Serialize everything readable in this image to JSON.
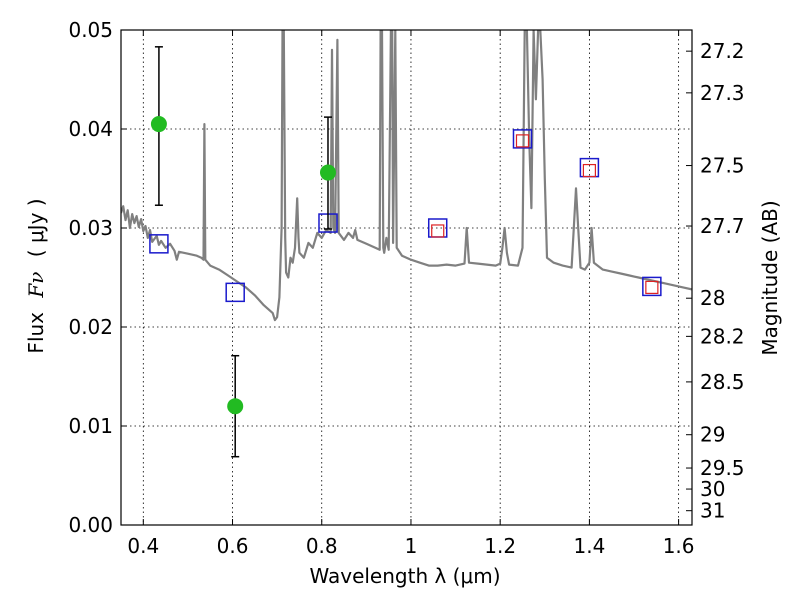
{
  "chart_data": {
    "type": "scatter",
    "xlabel": "Wavelength  λ (μm)",
    "ylabel_text": "Flux",
    "ylabel_symbol": "Fν",
    "ylabel_unit": "( μJy )",
    "y2label": "Magnitude (AB)",
    "xlim": [
      0.35,
      1.63
    ],
    "ylim": [
      0.0,
      0.05
    ],
    "grid": true,
    "x_ticks": [
      0.4,
      0.6,
      0.8,
      1.0,
      1.2,
      1.4,
      1.6
    ],
    "x_tick_labels": [
      "0.4",
      "0.6",
      "0.8",
      "1",
      "1.2",
      "1.4",
      "1.6"
    ],
    "y_ticks": [
      0.0,
      0.01,
      0.02,
      0.03,
      0.04,
      0.05
    ],
    "y_tick_labels": [
      "0.00",
      "0.01",
      "0.02",
      "0.03",
      "0.04",
      "0.05"
    ],
    "y2_ticks": [
      {
        "mag": 27.2,
        "label": "27.2"
      },
      {
        "mag": 27.3,
        "label": "27.3"
      },
      {
        "mag": 27.5,
        "label": "27.5"
      },
      {
        "mag": 27.7,
        "label": "27.7"
      },
      {
        "mag": 28.0,
        "label": "28"
      },
      {
        "mag": 28.2,
        "label": "28.2"
      },
      {
        "mag": 28.5,
        "label": "28.5"
      },
      {
        "mag": 29.0,
        "label": "29"
      },
      {
        "mag": 29.5,
        "label": "29.5"
      },
      {
        "mag": 30.0,
        "label": "30"
      },
      {
        "mag": 31.0,
        "label": "31"
      }
    ],
    "observed": {
      "color": "#22bb22",
      "points": [
        {
          "x": 0.435,
          "y": 0.0405,
          "err_low": 0.0323,
          "err_high": 0.0483
        },
        {
          "x": 0.606,
          "y": 0.012,
          "err_low": 0.0069,
          "err_high": 0.0171
        },
        {
          "x": 0.814,
          "y": 0.0356,
          "err_low": 0.0299,
          "err_high": 0.0412
        }
      ]
    },
    "model_blue": {
      "color": "#1a1acc",
      "points": [
        {
          "x": 0.435,
          "y": 0.0284
        },
        {
          "x": 0.606,
          "y": 0.0235
        },
        {
          "x": 0.814,
          "y": 0.0305
        },
        {
          "x": 1.06,
          "y": 0.03
        },
        {
          "x": 1.25,
          "y": 0.039
        },
        {
          "x": 1.4,
          "y": 0.0361
        },
        {
          "x": 1.54,
          "y": 0.0241
        }
      ]
    },
    "model_red": {
      "color": "#dd2222",
      "points": [
        {
          "x": 1.06,
          "y": 0.0297
        },
        {
          "x": 1.25,
          "y": 0.0388
        },
        {
          "x": 1.4,
          "y": 0.0358
        },
        {
          "x": 1.54,
          "y": 0.024
        }
      ]
    },
    "spectrum": {
      "color": "#808080",
      "points": [
        [
          0.35,
          0.0315
        ],
        [
          0.355,
          0.0322
        ],
        [
          0.36,
          0.0308
        ],
        [
          0.365,
          0.0318
        ],
        [
          0.37,
          0.03
        ],
        [
          0.375,
          0.0314
        ],
        [
          0.38,
          0.0305
        ],
        [
          0.385,
          0.0312
        ],
        [
          0.39,
          0.0301
        ],
        [
          0.395,
          0.0309
        ],
        [
          0.4,
          0.0297
        ],
        [
          0.405,
          0.0302
        ],
        [
          0.41,
          0.029
        ],
        [
          0.415,
          0.0298
        ],
        [
          0.42,
          0.0286
        ],
        [
          0.43,
          0.0292
        ],
        [
          0.435,
          0.0283
        ],
        [
          0.44,
          0.0287
        ],
        [
          0.45,
          0.028
        ],
        [
          0.46,
          0.0284
        ],
        [
          0.47,
          0.0277
        ],
        [
          0.475,
          0.0268
        ],
        [
          0.48,
          0.0276
        ],
        [
          0.5,
          0.0274
        ],
        [
          0.52,
          0.0272
        ],
        [
          0.53,
          0.027
        ],
        [
          0.535,
          0.0268
        ],
        [
          0.537,
          0.0405
        ],
        [
          0.539,
          0.0268
        ],
        [
          0.55,
          0.0262
        ],
        [
          0.57,
          0.0258
        ],
        [
          0.59,
          0.0252
        ],
        [
          0.61,
          0.0246
        ],
        [
          0.63,
          0.024
        ],
        [
          0.65,
          0.0232
        ],
        [
          0.67,
          0.0222
        ],
        [
          0.69,
          0.0214
        ],
        [
          0.695,
          0.0207
        ],
        [
          0.7,
          0.021
        ],
        [
          0.705,
          0.023
        ],
        [
          0.71,
          0.03
        ],
        [
          0.712,
          0.05
        ],
        [
          0.715,
          0.05
        ],
        [
          0.718,
          0.029
        ],
        [
          0.72,
          0.0255
        ],
        [
          0.725,
          0.025
        ],
        [
          0.73,
          0.027
        ],
        [
          0.735,
          0.0265
        ],
        [
          0.74,
          0.028
        ],
        [
          0.745,
          0.033
        ],
        [
          0.748,
          0.029
        ],
        [
          0.75,
          0.0275
        ],
        [
          0.76,
          0.027
        ],
        [
          0.77,
          0.0285
        ],
        [
          0.78,
          0.028
        ],
        [
          0.79,
          0.0295
        ],
        [
          0.8,
          0.029
        ],
        [
          0.81,
          0.0298
        ],
        [
          0.82,
          0.0295
        ],
        [
          0.823,
          0.048
        ],
        [
          0.826,
          0.03
        ],
        [
          0.83,
          0.0295
        ],
        [
          0.835,
          0.049
        ],
        [
          0.838,
          0.0295
        ],
        [
          0.85,
          0.0288
        ],
        [
          0.86,
          0.0295
        ],
        [
          0.87,
          0.029
        ],
        [
          0.875,
          0.0298
        ],
        [
          0.88,
          0.0288
        ],
        [
          0.9,
          0.0284
        ],
        [
          0.92,
          0.028
        ],
        [
          0.93,
          0.0278
        ],
        [
          0.932,
          0.05
        ],
        [
          0.935,
          0.05
        ],
        [
          0.938,
          0.028
        ],
        [
          0.94,
          0.0275
        ],
        [
          0.945,
          0.029
        ],
        [
          0.95,
          0.0278
        ],
        [
          0.955,
          0.05
        ],
        [
          0.958,
          0.05
        ],
        [
          0.96,
          0.0285
        ],
        [
          0.965,
          0.05
        ],
        [
          0.968,
          0.028
        ],
        [
          0.98,
          0.0272
        ],
        [
          1.0,
          0.0268
        ],
        [
          1.02,
          0.0265
        ],
        [
          1.04,
          0.0262
        ],
        [
          1.06,
          0.0262
        ],
        [
          1.08,
          0.0263
        ],
        [
          1.1,
          0.0262
        ],
        [
          1.12,
          0.0264
        ],
        [
          1.125,
          0.03
        ],
        [
          1.13,
          0.0265
        ],
        [
          1.15,
          0.0264
        ],
        [
          1.17,
          0.0263
        ],
        [
          1.19,
          0.0262
        ],
        [
          1.2,
          0.0264
        ],
        [
          1.205,
          0.028
        ],
        [
          1.21,
          0.03
        ],
        [
          1.215,
          0.0275
        ],
        [
          1.22,
          0.0263
        ],
        [
          1.24,
          0.0262
        ],
        [
          1.25,
          0.028
        ],
        [
          1.255,
          0.05
        ],
        [
          1.26,
          0.05
        ],
        [
          1.265,
          0.039
        ],
        [
          1.27,
          0.032
        ],
        [
          1.275,
          0.05
        ],
        [
          1.28,
          0.043
        ],
        [
          1.285,
          0.05
        ],
        [
          1.29,
          0.05
        ],
        [
          1.295,
          0.045
        ],
        [
          1.3,
          0.035
        ],
        [
          1.305,
          0.027
        ],
        [
          1.32,
          0.0265
        ],
        [
          1.34,
          0.0262
        ],
        [
          1.36,
          0.026
        ],
        [
          1.365,
          0.03
        ],
        [
          1.37,
          0.034
        ],
        [
          1.375,
          0.03
        ],
        [
          1.38,
          0.026
        ],
        [
          1.39,
          0.0258
        ],
        [
          1.4,
          0.0265
        ],
        [
          1.405,
          0.03
        ],
        [
          1.41,
          0.0265
        ],
        [
          1.43,
          0.0258
        ],
        [
          1.45,
          0.0256
        ],
        [
          1.47,
          0.0254
        ],
        [
          1.49,
          0.0252
        ],
        [
          1.51,
          0.025
        ],
        [
          1.53,
          0.0248
        ],
        [
          1.55,
          0.0246
        ],
        [
          1.57,
          0.0244
        ],
        [
          1.59,
          0.0242
        ],
        [
          1.61,
          0.024
        ],
        [
          1.63,
          0.0238
        ]
      ]
    }
  }
}
